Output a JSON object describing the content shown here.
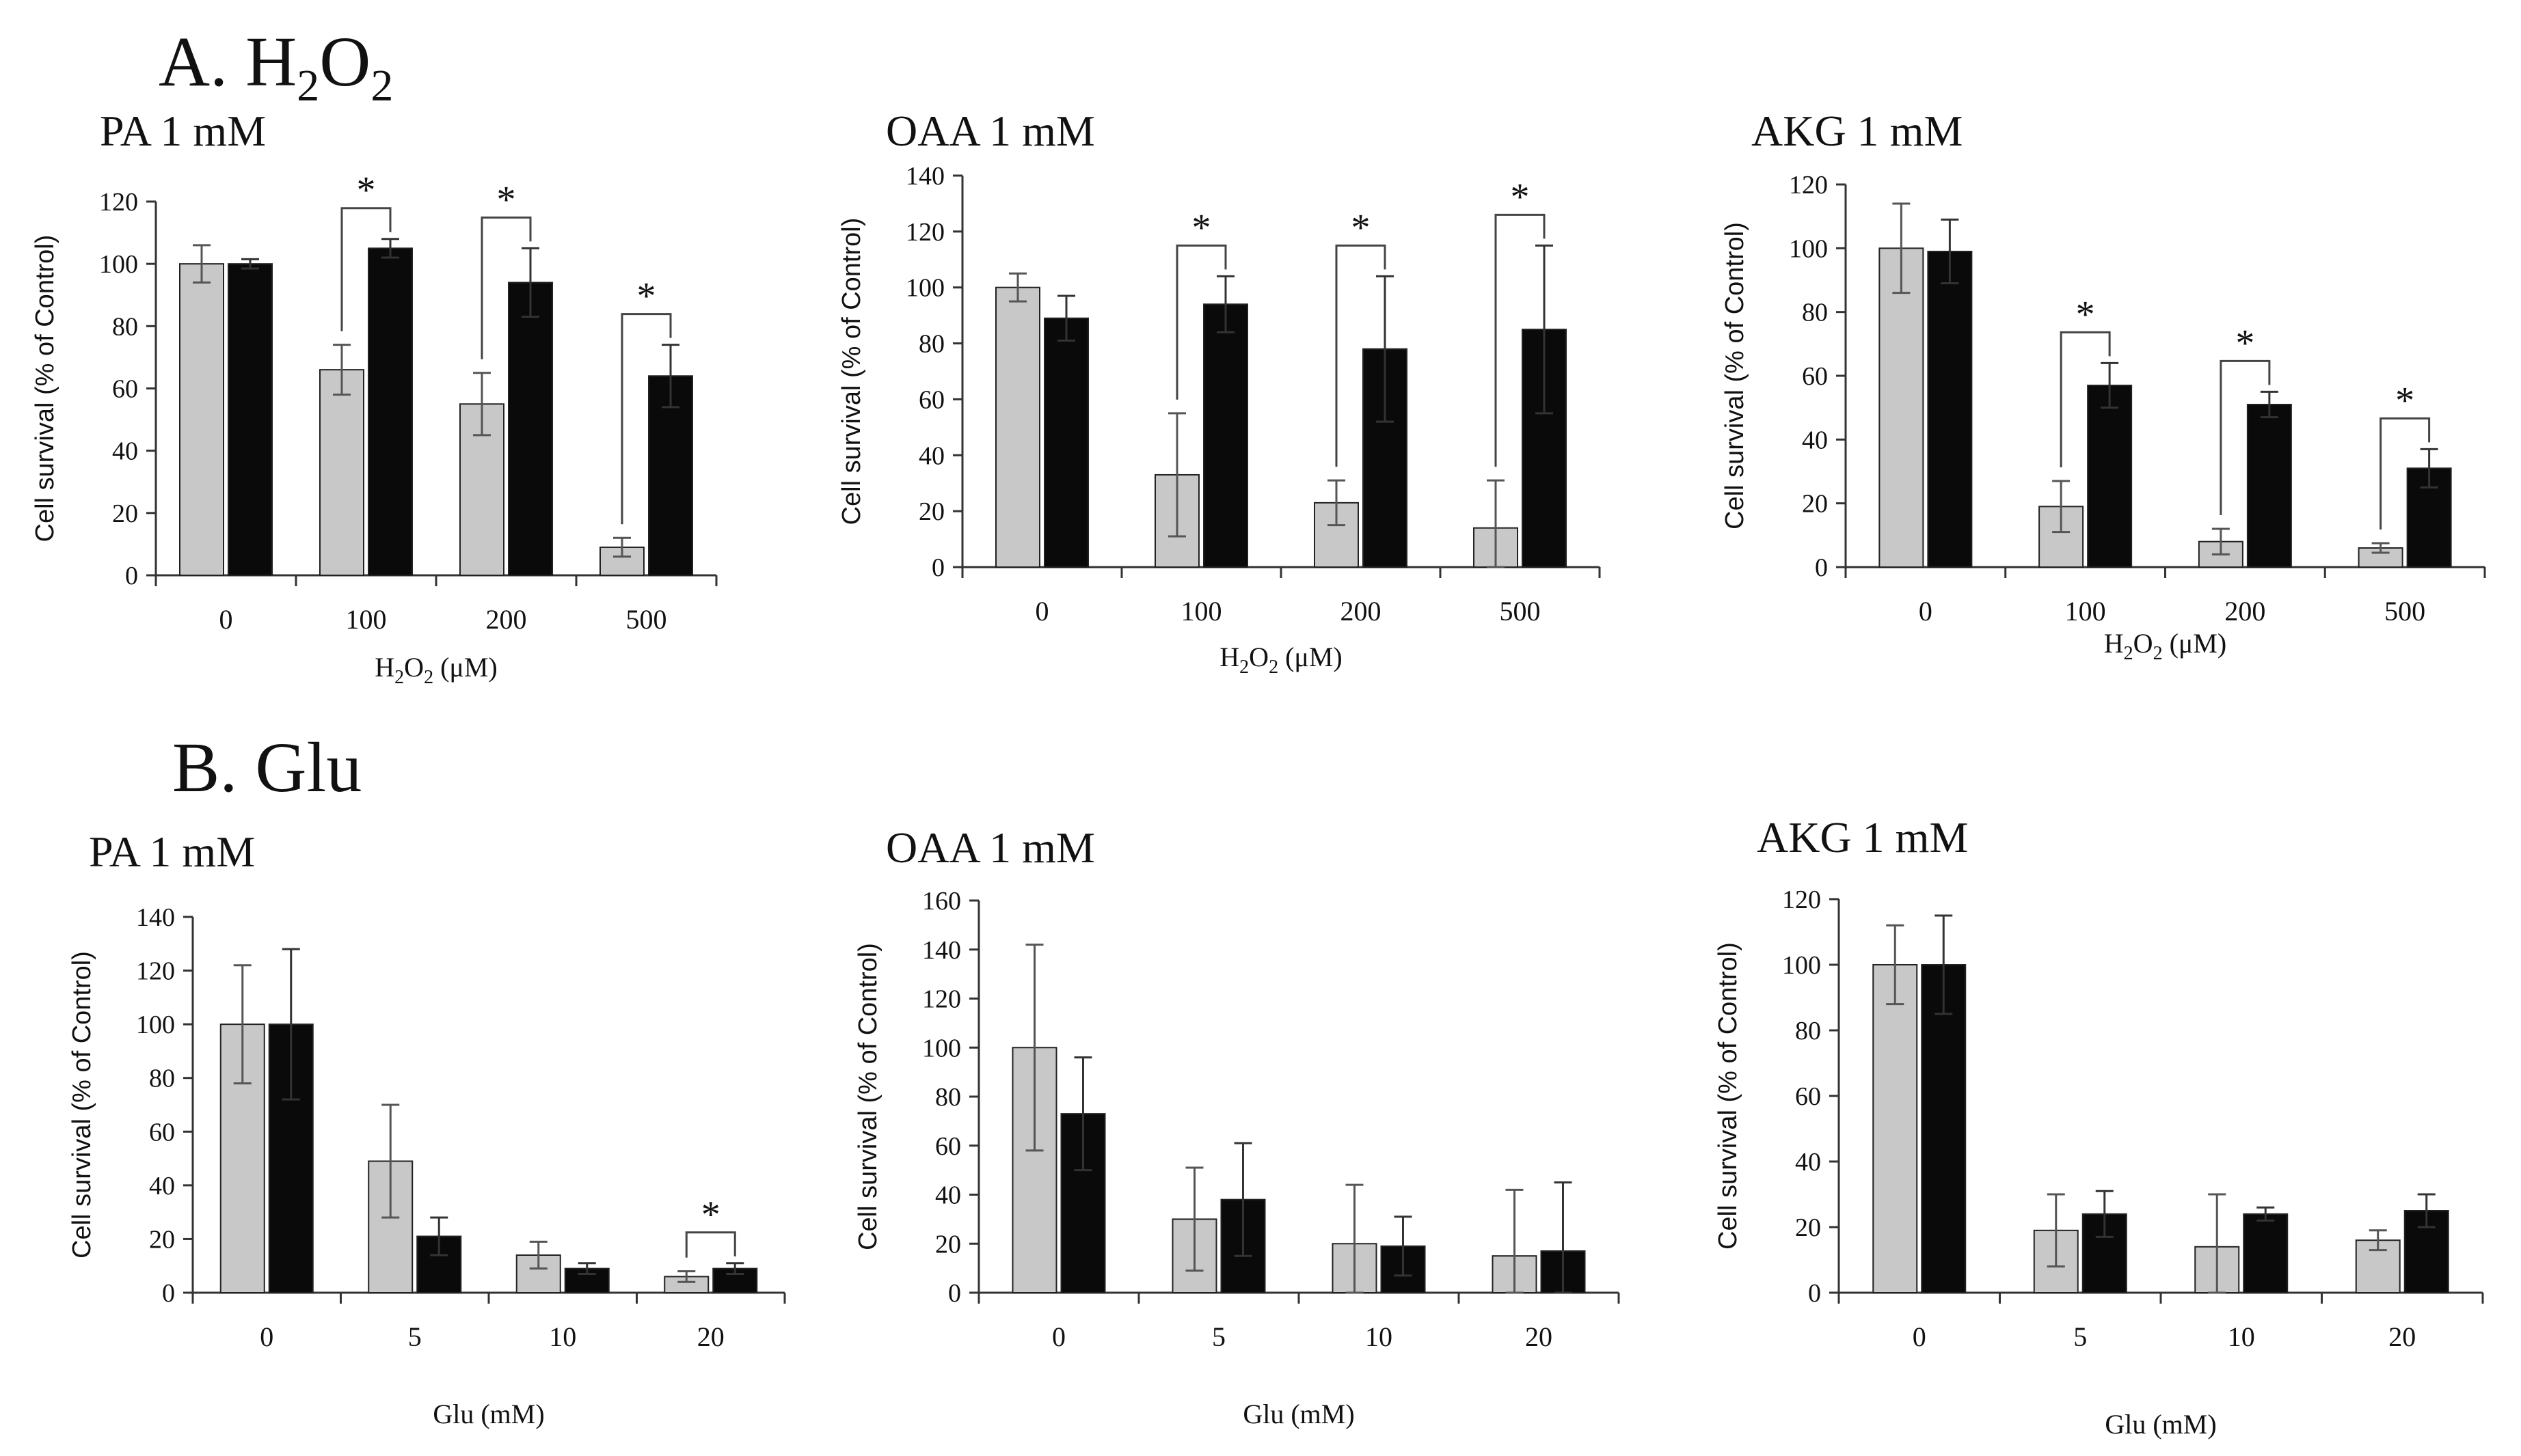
{
  "figure": {
    "section_a": "A. H",
    "section_a_sub1": "2",
    "section_a_mid": "O",
    "section_a_sub2": "2",
    "section_b": "B. Glu"
  },
  "colors": {
    "series_gray": "#c8c8c8",
    "series_black": "#0a0a0a",
    "axis": "#333333"
  },
  "chart_data": [
    {
      "type": "bar",
      "title": "PA 1 mM",
      "ylabel": "Cell survival (% of Control)",
      "xlabel": "H2O2 (μM)",
      "ylim": [
        0,
        120
      ],
      "yticks": [
        0,
        20,
        40,
        60,
        80,
        100,
        120
      ],
      "categories": [
        "0",
        "100",
        "200",
        "500"
      ],
      "series": [
        {
          "name": "gray",
          "values": [
            100,
            66,
            55,
            9
          ],
          "errors": [
            6,
            8,
            10,
            3
          ]
        },
        {
          "name": "black",
          "values": [
            100,
            105,
            94,
            64
          ],
          "errors": [
            1.5,
            3,
            11,
            10
          ]
        }
      ],
      "significance": [
        "",
        "*",
        "*",
        "*"
      ]
    },
    {
      "type": "bar",
      "title": "OAA 1 mM",
      "ylabel": "Cell survival (% of Control)",
      "xlabel": "H2O2 (μM)",
      "ylim": [
        0,
        140
      ],
      "yticks": [
        0,
        20,
        40,
        60,
        80,
        100,
        120,
        140
      ],
      "categories": [
        "0",
        "100",
        "200",
        "500"
      ],
      "series": [
        {
          "name": "gray",
          "values": [
            100,
            33,
            23,
            14
          ],
          "errors": [
            5,
            22,
            8,
            17
          ]
        },
        {
          "name": "black",
          "values": [
            89,
            94,
            78,
            85
          ],
          "errors": [
            8,
            10,
            26,
            30
          ]
        }
      ],
      "significance": [
        "",
        "*",
        "*",
        "*"
      ]
    },
    {
      "type": "bar",
      "title": "AKG 1 mM",
      "ylabel": "Cell survival (% of Control)",
      "xlabel": "H2O2 (μM)",
      "ylim": [
        0,
        120
      ],
      "yticks": [
        0,
        20,
        40,
        60,
        80,
        100,
        120
      ],
      "categories": [
        "0",
        "100",
        "200",
        "500"
      ],
      "series": [
        {
          "name": "gray",
          "values": [
            100,
            19,
            8,
            6
          ],
          "errors": [
            14,
            8,
            4,
            1.5
          ]
        },
        {
          "name": "black",
          "values": [
            99,
            57,
            51,
            31
          ],
          "errors": [
            10,
            7,
            4,
            6
          ]
        }
      ],
      "significance": [
        "",
        "*",
        "*",
        "*"
      ]
    },
    {
      "type": "bar",
      "title": "PA 1 mM",
      "ylabel": "Cell survival (% of Control)",
      "xlabel": "Glu (mM)",
      "ylim": [
        0,
        140
      ],
      "yticks": [
        0,
        20,
        40,
        60,
        80,
        100,
        120,
        140
      ],
      "categories": [
        "0",
        "5",
        "10",
        "20"
      ],
      "series": [
        {
          "name": "gray",
          "values": [
            100,
            49,
            14,
            6
          ],
          "errors": [
            22,
            21,
            5,
            2
          ]
        },
        {
          "name": "black",
          "values": [
            100,
            21,
            9,
            9
          ],
          "errors": [
            28,
            7,
            2,
            2
          ]
        }
      ],
      "significance": [
        "",
        "",
        "",
        "*"
      ]
    },
    {
      "type": "bar",
      "title": "OAA 1 mM",
      "ylabel": "Cell survival (% of Control)",
      "xlabel": "Glu (mM)",
      "ylim": [
        0,
        160
      ],
      "yticks": [
        0,
        20,
        40,
        60,
        80,
        100,
        120,
        140,
        160
      ],
      "categories": [
        "0",
        "5",
        "10",
        "20"
      ],
      "series": [
        {
          "name": "gray",
          "values": [
            100,
            30,
            20,
            15
          ],
          "errors": [
            42,
            21,
            24,
            27
          ]
        },
        {
          "name": "black",
          "values": [
            73,
            38,
            19,
            17
          ],
          "errors": [
            23,
            23,
            12,
            28
          ]
        }
      ],
      "significance": [
        "",
        "",
        "",
        ""
      ]
    },
    {
      "type": "bar",
      "title": "AKG 1 mM",
      "ylabel": "Cell survival (% of Control)",
      "xlabel": "Glu (mM)",
      "ylim": [
        0,
        120
      ],
      "yticks": [
        0,
        20,
        40,
        60,
        80,
        100,
        120
      ],
      "categories": [
        "0",
        "5",
        "10",
        "20"
      ],
      "series": [
        {
          "name": "gray",
          "values": [
            100,
            19,
            14,
            16
          ],
          "errors": [
            12,
            11,
            16,
            3
          ]
        },
        {
          "name": "black",
          "values": [
            100,
            24,
            24,
            25
          ],
          "errors": [
            15,
            7,
            2,
            5
          ]
        }
      ],
      "significance": [
        "",
        "",
        "",
        ""
      ]
    }
  ]
}
